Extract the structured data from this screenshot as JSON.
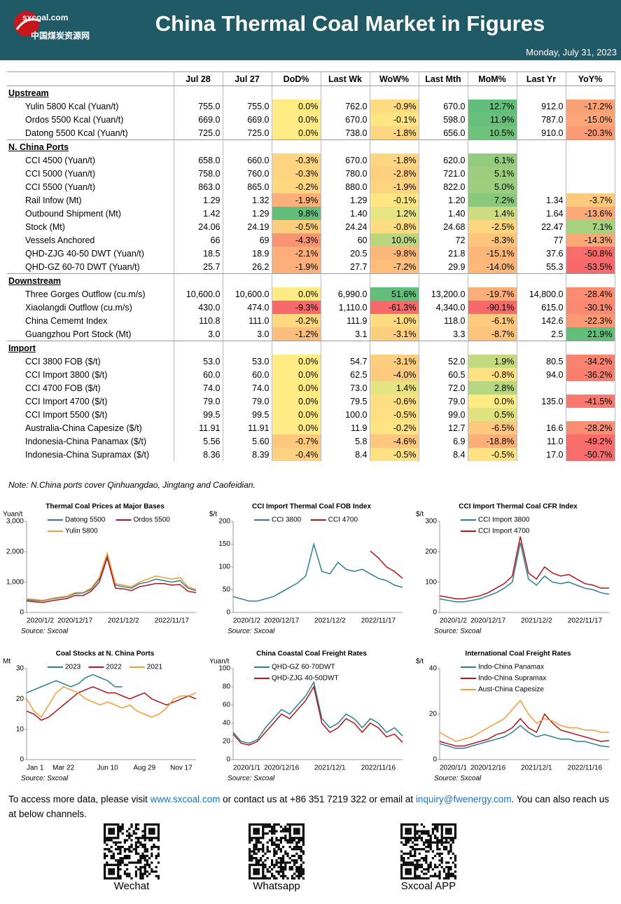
{
  "header": {
    "logo_top": "sxcoal.com",
    "logo_bottom": "中国煤炭资源网",
    "title": "China Thermal Coal Market in Figures",
    "date": "Monday, July 31, 2023"
  },
  "table": {
    "columns": [
      "Jul 28",
      "Jul 27",
      "DoD%",
      "Last Wk",
      "WoW%",
      "Last Mth",
      "MoM%",
      "Last Yr",
      "YoY%"
    ],
    "sections": [
      {
        "name": "Upstream",
        "rows": [
          [
            "Yulin 5800 Kcal (Yuan/t)",
            "755.0",
            "755.0",
            "0.0%",
            "762.0",
            "-0.9%",
            "670.0",
            "12.7%",
            "912.0",
            "-17.2%"
          ],
          [
            "Ordos 5500 Kcal (Yuan/t)",
            "669.0",
            "669.0",
            "0.0%",
            "670.0",
            "-0.1%",
            "598.0",
            "11.9%",
            "787.0",
            "-15.0%"
          ],
          [
            "Datong 5500 Kcal (Yuan/t)",
            "725.0",
            "725.0",
            "0.0%",
            "738.0",
            "-1.8%",
            "656.0",
            "10.5%",
            "910.0",
            "-20.3%"
          ]
        ]
      },
      {
        "name": "N. China Ports",
        "rows": [
          [
            "CCI 4500 (Yuan/t)",
            "658.0",
            "660.0",
            "-0.3%",
            "670.0",
            "-1.8%",
            "620.0",
            "6.1%",
            null,
            null
          ],
          [
            "CCI 5000 (Yuan/t)",
            "758.0",
            "760.0",
            "-0.3%",
            "780.0",
            "-2.8%",
            "721.0",
            "5.1%",
            null,
            null
          ],
          [
            "CCI 5500 (Yuan/t)",
            "863.0",
            "865.0",
            "-0.2%",
            "880.0",
            "-1.9%",
            "822.0",
            "5.0%",
            null,
            null
          ],
          [
            "Rail Infow (Mt)",
            "1.29",
            "1.32",
            "-1.9%",
            "1.29",
            "-0.1%",
            "1.20",
            "7.2%",
            "1.34",
            "-3.7%"
          ],
          [
            "Outbound Shipment (Mt)",
            "1.42",
            "1.29",
            "9.8%",
            "1.40",
            "1.2%",
            "1.40",
            "1.4%",
            "1.64",
            "-13.6%"
          ],
          [
            "Stock (Mt)",
            "24.06",
            "24.19",
            "-0.5%",
            "24.24",
            "-0.8%",
            "24.68",
            "-2.5%",
            "22.47",
            "7.1%"
          ],
          [
            "Vessels Anchored",
            "66",
            "69",
            "-4.3%",
            "60",
            "10.0%",
            "72",
            "-8.3%",
            "77",
            "-14.3%"
          ],
          [
            "QHD-ZJG 40-50 DWT (Yuan/t)",
            "18.5",
            "18.9",
            "-2.1%",
            "20.5",
            "-9.8%",
            "21.8",
            "-15.1%",
            "37.6",
            "-50.8%"
          ],
          [
            "QHD-GZ 60-70 DWT (Yuan/t)",
            "25.7",
            "26.2",
            "-1.9%",
            "27.7",
            "-7.2%",
            "29.9",
            "-14.0%",
            "55.3",
            "-53.5%"
          ]
        ]
      },
      {
        "name": "Downstream",
        "rows": [
          [
            "Three Gorges Outflow (cu.m/s)",
            "10,600.0",
            "10,600.0",
            "0.0%",
            "6,990.0",
            "51.6%",
            "13,200.0",
            "-19.7%",
            "14,800.0",
            "-28.4%"
          ],
          [
            "Xiaolangdi Outflow (cu.m/s)",
            "430.0",
            "474.0",
            "-9.3%",
            "1,110.0",
            "-61.3%",
            "4,340.0",
            "-90.1%",
            "615.0",
            "-30.1%"
          ],
          [
            "China Cememt Index",
            "110.8",
            "111.0",
            "-0.2%",
            "111.9",
            "-1.0%",
            "118.0",
            "-6.1%",
            "142.6",
            "-22.3%"
          ],
          [
            "Guangzhou Port Stock (Mt)",
            "3.0",
            "3.0",
            "-1.2%",
            "3.1",
            "-3.1%",
            "3.3",
            "-8.7%",
            "2.5",
            "21.9%"
          ]
        ]
      },
      {
        "name": "Import",
        "rows": [
          [
            "CCI 3800 FOB ($/t)",
            "53.0",
            "53.0",
            "0.0%",
            "54.7",
            "-3.1%",
            "52.0",
            "1.9%",
            "80.5",
            "-34.2%"
          ],
          [
            "CCI Import 3800 ($/t)",
            "60.0",
            "60.0",
            "0.0%",
            "62.5",
            "-4.0%",
            "60.5",
            "-0.8%",
            "94.0",
            "-36.2%"
          ],
          [
            "CCI 4700 FOB ($/t)",
            "74.0",
            "74.0",
            "0.0%",
            "73.0",
            "1.4%",
            "72.0",
            "2.8%",
            null,
            null
          ],
          [
            "CCI Import 4700 ($/t)",
            "79.0",
            "79.0",
            "0.0%",
            "79.5",
            "-0.6%",
            "79.0",
            "0.0%",
            "135.0",
            "-41.5%"
          ],
          [
            "CCI Import 5500 ($/t)",
            "99.5",
            "99.5",
            "0.0%",
            "100.0",
            "-0.5%",
            "99.0",
            "0.5%",
            null,
            null
          ],
          [
            "Australia-China Capesize ($/t)",
            "11.91",
            "11.91",
            "0.0%",
            "11.9",
            "-0.2%",
            "12.7",
            "-6.5%",
            "16.6",
            "-28.2%"
          ],
          [
            "Indonesia-China Panamax ($/t)",
            "5.56",
            "5.60",
            "-0.7%",
            "5.8",
            "-4.6%",
            "6.9",
            "-18.8%",
            "11.0",
            "-49.2%"
          ],
          [
            "Indonesia-China Supramax ($/t)",
            "8.36",
            "8.39",
            "-0.4%",
            "8.4",
            "-0.5%",
            "8.4",
            "-0.5%",
            "17.0",
            "-50.7%"
          ]
        ]
      }
    ],
    "heat_columns": [
      2,
      4,
      6,
      8
    ]
  },
  "note": "Note: N.China ports cover Qinhuangdao, Jingtang and Caofeidian.",
  "charts": [
    {
      "type": "line",
      "title": "Thermal Coal Prices at Major Bases",
      "ylabel": "Yuan/t",
      "source": "Source: Sxcoal",
      "categories": [
        "2020/1/2",
        null,
        null,
        null,
        null,
        null,
        "2020/12/17",
        null,
        null,
        null,
        null,
        null,
        "2021/12/2",
        null,
        null,
        null,
        null,
        null,
        "2022/11/17",
        null,
        null,
        null
      ],
      "ylim": [
        0,
        3000
      ],
      "yticks": [
        0,
        {
          "value": 1000,
          "label": "1,000"
        },
        {
          "value": 2000,
          "label": "2,000"
        },
        {
          "value": 3000,
          "label": "3,000"
        }
      ],
      "series": [
        {
          "name": "Datong 5500",
          "color": "#2e7f8e",
          "values": [
            420,
            400,
            380,
            440,
            480,
            520,
            620,
            640,
            760,
            1100,
            1900,
            900,
            850,
            800,
            950,
            1000,
            1100,
            1050,
            1000,
            1050,
            800,
            720
          ]
        },
        {
          "name": "Ordos 5500",
          "color": "#b0161b",
          "values": [
            380,
            350,
            330,
            380,
            420,
            460,
            560,
            560,
            700,
            1000,
            1800,
            800,
            780,
            720,
            850,
            900,
            950,
            950,
            900,
            920,
            700,
            650
          ]
        },
        {
          "name": "Yulin 5800",
          "color": "#f29b38",
          "values": [
            450,
            430,
            400,
            460,
            500,
            540,
            650,
            660,
            800,
            1150,
            1950,
            950,
            900,
            850,
            1000,
            1100,
            1200,
            1150,
            1100,
            1150,
            850,
            755
          ]
        }
      ]
    },
    {
      "type": "line",
      "title": "CCI Import Thermal Coal FOB Index",
      "ylabel": "$/t",
      "source": "Source: Sxcoal",
      "categories": [
        "2020/1/2",
        null,
        null,
        null,
        null,
        null,
        "2020/12/17",
        null,
        null,
        null,
        null,
        null,
        "2021/12/2",
        null,
        null,
        null,
        null,
        null,
        "2022/11/17",
        null,
        null,
        null
      ],
      "ylim": [
        0,
        200
      ],
      "yticks": [
        0,
        50,
        100,
        150,
        200
      ],
      "series": [
        {
          "name": "CCI 3800",
          "color": "#2e7f8e",
          "values": [
            35,
            30,
            25,
            25,
            30,
            35,
            45,
            55,
            65,
            80,
            150,
            90,
            85,
            110,
            95,
            90,
            95,
            85,
            75,
            70,
            60,
            55
          ]
        },
        {
          "name": "CCI 4700",
          "color": "#b0161b",
          "values": [
            null,
            null,
            null,
            null,
            null,
            null,
            null,
            null,
            null,
            null,
            null,
            null,
            null,
            null,
            null,
            null,
            null,
            135,
            120,
            100,
            90,
            75
          ]
        }
      ]
    },
    {
      "type": "line",
      "title": "CCI Import Thermal Coal CFR Index",
      "ylabel": "$/t",
      "source": "Source: Sxcoal",
      "categories": [
        "2020/1/2",
        null,
        null,
        null,
        null,
        null,
        "2020/12/17",
        null,
        null,
        null,
        null,
        null,
        "2021/12/2",
        null,
        null,
        null,
        null,
        null,
        "2022/11/17",
        null,
        null,
        null
      ],
      "ylim": [
        0,
        300
      ],
      "yticks": [
        0,
        100,
        200,
        300
      ],
      "series": [
        {
          "name": "CCI Import 3800",
          "color": "#2e7f8e",
          "values": [
            45,
            40,
            35,
            35,
            40,
            45,
            55,
            65,
            80,
            100,
            230,
            110,
            90,
            120,
            100,
            95,
            100,
            90,
            80,
            75,
            65,
            60
          ]
        },
        {
          "name": "CCI Import 4700",
          "color": "#b0161b",
          "values": [
            55,
            50,
            45,
            45,
            50,
            55,
            65,
            80,
            95,
            120,
            250,
            130,
            110,
            150,
            130,
            120,
            125,
            110,
            95,
            90,
            80,
            80
          ]
        }
      ]
    },
    {
      "type": "line",
      "title": "Coal Stocks at N. China Ports",
      "ylabel": "Mt",
      "source": "Source: Sxcoal",
      "categories": [
        "Jan 1",
        null,
        null,
        null,
        null,
        "Mar 22",
        null,
        null,
        null,
        null,
        null,
        "Jun 10",
        null,
        null,
        null,
        null,
        "Aug 29",
        null,
        null,
        null,
        null,
        "Nov 17",
        null,
        null
      ],
      "ylim": [
        0,
        30
      ],
      "yticks": [
        0,
        10,
        20,
        30
      ],
      "series": [
        {
          "name": "2023",
          "color": "#2e7f8e",
          "values": [
            22,
            23,
            24,
            25,
            26,
            25,
            24,
            25,
            27,
            28,
            27,
            26,
            24,
            24,
            null,
            null,
            null,
            null,
            null,
            null,
            null,
            null,
            null,
            null
          ]
        },
        {
          "name": "2022",
          "color": "#b0161b",
          "values": [
            16,
            15,
            13,
            14,
            16,
            18,
            20,
            22,
            23,
            24,
            23,
            22,
            22,
            21,
            20,
            21,
            22,
            20,
            19,
            18,
            19,
            20,
            21,
            20
          ]
        },
        {
          "name": "2021",
          "color": "#f29b38",
          "values": [
            20,
            16,
            14,
            18,
            22,
            24,
            23,
            22,
            20,
            19,
            18,
            19,
            18,
            17,
            18,
            16,
            15,
            14,
            15,
            17,
            20,
            21,
            21,
            22
          ]
        }
      ]
    },
    {
      "type": "line",
      "title": "China Coastal Coal Freight Rates",
      "ylabel": "Yuan/t",
      "source": "Source: Sxcoal",
      "categories": [
        "2020/1/1",
        null,
        null,
        null,
        null,
        null,
        "2020/12/16",
        null,
        null,
        null,
        null,
        null,
        "2021/12/1",
        null,
        null,
        null,
        null,
        null,
        "2022/11/16",
        null,
        null,
        null
      ],
      "ylim": [
        0,
        100
      ],
      "yticks": [
        0,
        20,
        40,
        60,
        80,
        100
      ],
      "series": [
        {
          "name": "QHD-GZ 60-70DWT",
          "color": "#2e7f8e",
          "values": [
            30,
            20,
            18,
            22,
            35,
            45,
            55,
            50,
            60,
            70,
            85,
            45,
            35,
            40,
            50,
            45,
            35,
            45,
            40,
            30,
            35,
            26
          ]
        },
        {
          "name": "QHD-ZJG 40-50DWT",
          "color": "#b0161b",
          "values": [
            28,
            18,
            16,
            20,
            30,
            40,
            50,
            45,
            55,
            65,
            80,
            40,
            30,
            35,
            45,
            40,
            30,
            40,
            35,
            25,
            28,
            19
          ]
        }
      ]
    },
    {
      "type": "line",
      "title": "International Coal Freight Rates",
      "ylabel": "$/t",
      "source": "Source: Sxcoal",
      "categories": [
        "2020/1/1",
        null,
        null,
        null,
        null,
        null,
        "2020/12/16",
        null,
        null,
        null,
        null,
        null,
        "2021/12/1",
        null,
        null,
        null,
        null,
        null,
        "2022/11/16",
        null,
        null,
        null
      ],
      "ylim": [
        0,
        40
      ],
      "yticks": [
        0,
        20,
        40
      ],
      "series": [
        {
          "name": "Indo-China Panamax",
          "color": "#2e7f8e",
          "values": [
            7,
            6,
            5,
            5,
            6,
            7,
            8,
            9,
            10,
            12,
            15,
            12,
            10,
            11,
            10,
            9,
            9,
            8,
            8,
            7,
            6,
            5.6
          ]
        },
        {
          "name": "Indo-China Supramax",
          "color": "#b0161b",
          "values": [
            8,
            7,
            6,
            6,
            7,
            8,
            9,
            11,
            12,
            14,
            18,
            14,
            12,
            20,
            16,
            13,
            12,
            11,
            10,
            9,
            8,
            8.4
          ]
        },
        {
          "name": "Aust-China Capesize",
          "color": "#f29b38",
          "values": [
            12,
            10,
            8,
            9,
            10,
            12,
            14,
            16,
            18,
            22,
            26,
            20,
            16,
            18,
            17,
            15,
            14,
            14,
            13,
            13,
            12,
            11.9
          ]
        }
      ]
    }
  ],
  "footer": {
    "parts": [
      "To access more data, please visit ",
      "www.sxcoal.com",
      " or contact us at +86 351 7219 322 or email at ",
      "inquiry@fwenergy.com",
      ". You can also reach us at below channels."
    ],
    "channels": [
      "Wechat",
      "Whatsapp",
      "Sxcoal APP"
    ]
  }
}
